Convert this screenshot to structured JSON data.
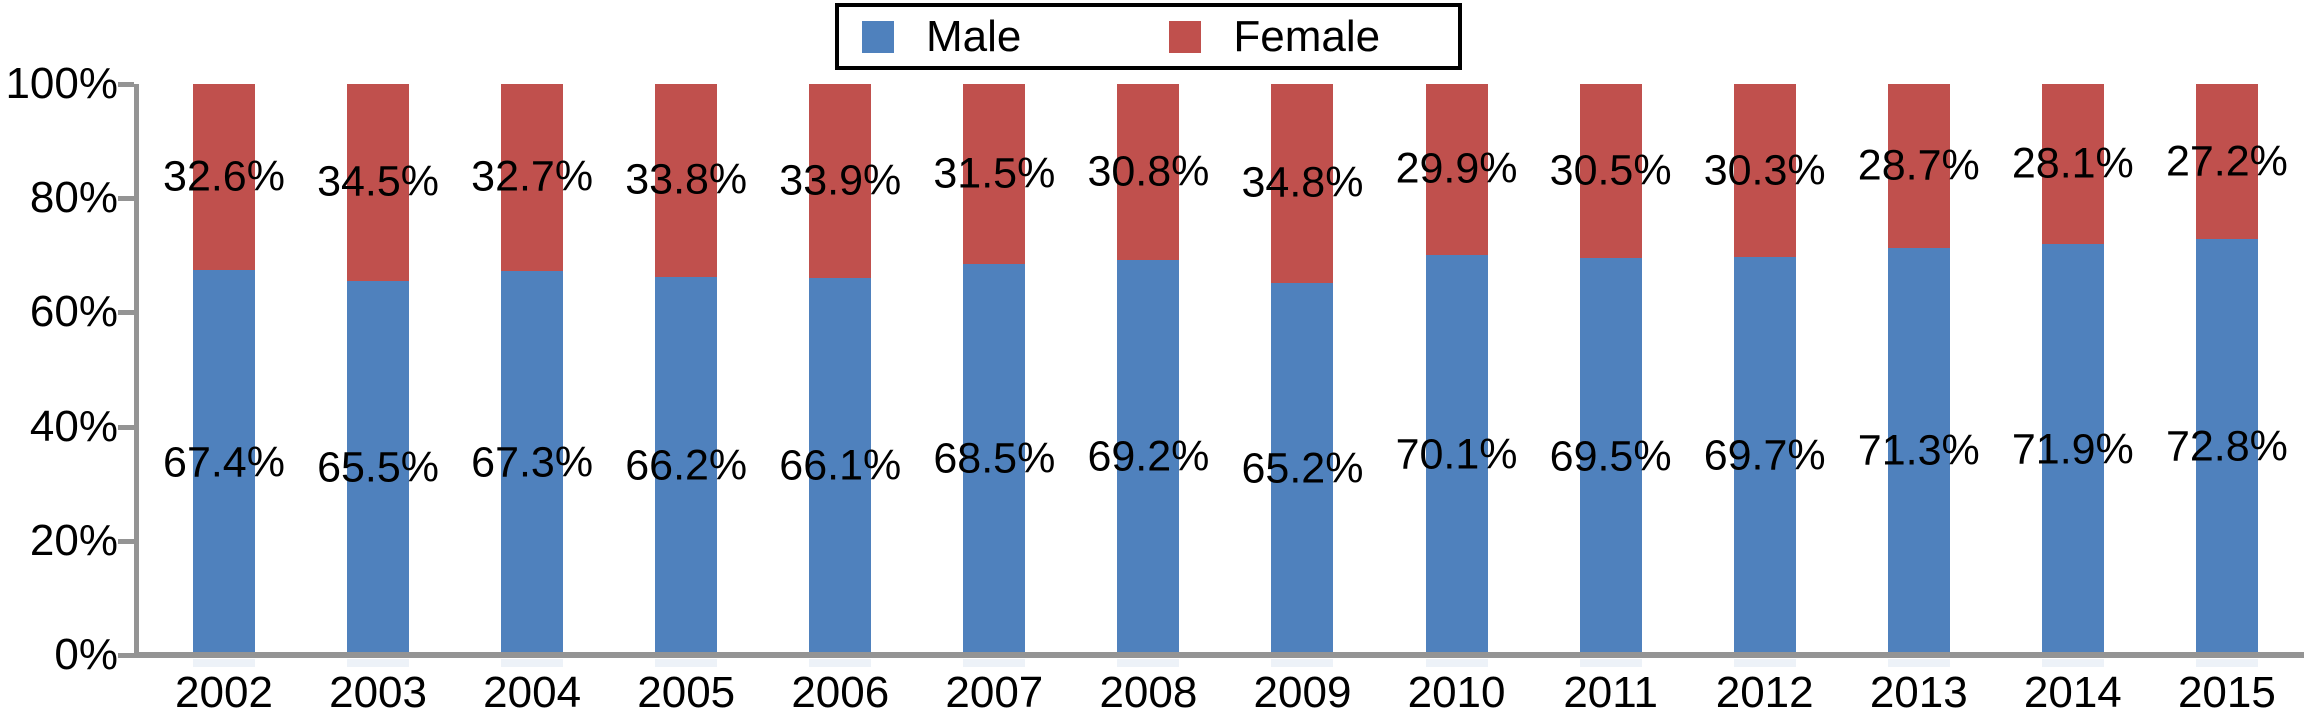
{
  "chart_data": {
    "type": "bar",
    "stacked": true,
    "orientation": "vertical",
    "title": "",
    "xlabel": "",
    "ylabel": "",
    "categories": [
      "2002",
      "2003",
      "2004",
      "2005",
      "2006",
      "2007",
      "2008",
      "2009",
      "2010",
      "2011",
      "2012",
      "2013",
      "2014",
      "2015"
    ],
    "series": [
      {
        "name": "Male",
        "color": "#4F81BD",
        "values": [
          67.4,
          65.5,
          67.3,
          66.2,
          66.1,
          68.5,
          69.2,
          65.2,
          70.1,
          69.5,
          69.7,
          71.3,
          71.9,
          72.8
        ]
      },
      {
        "name": "Female",
        "color": "#C0504D",
        "values": [
          32.6,
          34.5,
          32.7,
          33.8,
          33.9,
          31.5,
          30.8,
          34.8,
          29.9,
          30.5,
          30.3,
          28.7,
          28.1,
          27.2
        ]
      }
    ],
    "data_labels": {
      "male": [
        "67.4%",
        "65.5%",
        "67.3%",
        "66.2%",
        "66.1%",
        "68.5%",
        "69.2%",
        "65.2%",
        "70.1%",
        "69.5%",
        "69.7%",
        "71.3%",
        "71.9%",
        "72.8%"
      ],
      "female": [
        "32.6%",
        "34.5%",
        "32.7%",
        "33.8%",
        "33.9%",
        "31.5%",
        "30.8%",
        "34.8%",
        "29.9%",
        "30.5%",
        "30.3%",
        "28.7%",
        "28.1%",
        "27.2%"
      ]
    },
    "y_axis": {
      "min": 0,
      "max": 100,
      "tick_labels": [
        "0%",
        "20%",
        "40%",
        "60%",
        "80%",
        "100%"
      ],
      "grid": false
    },
    "legend": {
      "position": "top-center",
      "border": true,
      "entries": [
        {
          "label": "Male",
          "color": "#4F81BD"
        },
        {
          "label": "Female",
          "color": "#C0504D"
        }
      ]
    },
    "colors": {
      "male_fill": "#4F81BD",
      "female_fill": "#C0504D",
      "axis_line": "#949494",
      "label_text": "#000000",
      "legend_border": "#000000",
      "bar_shadow": "#dce6f2"
    }
  }
}
